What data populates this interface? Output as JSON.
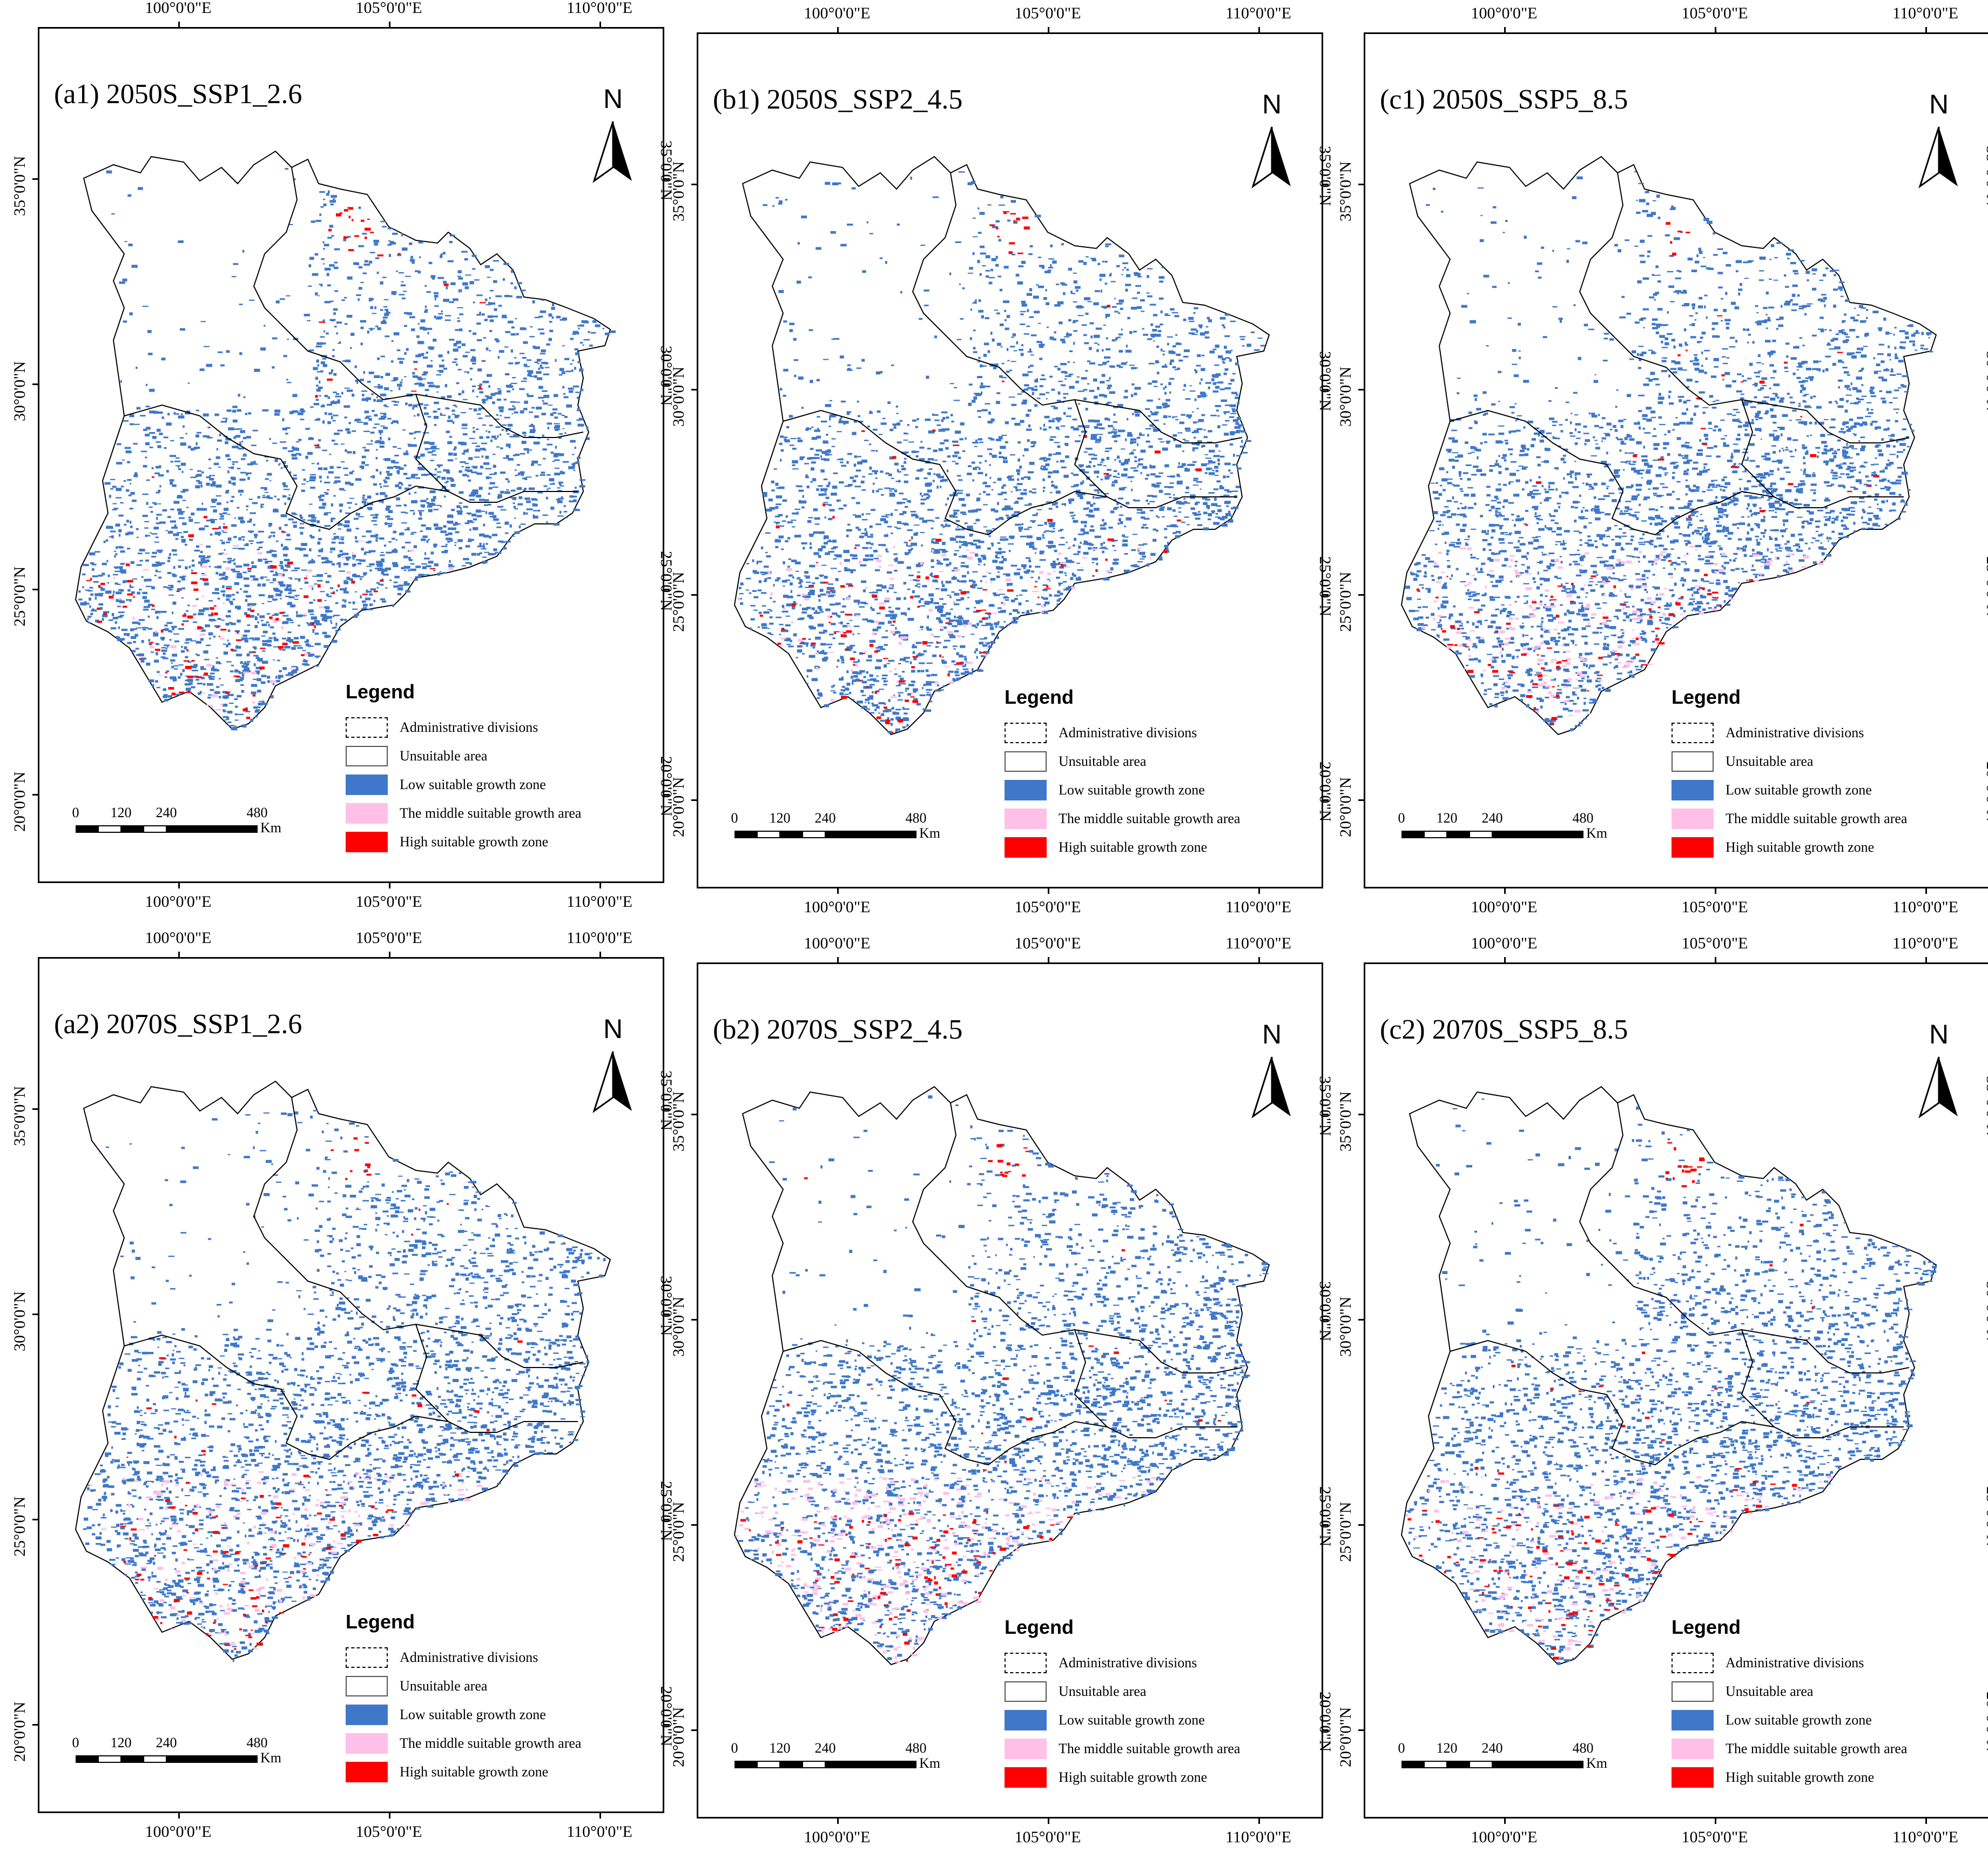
{
  "panels": [
    {
      "id": "a1",
      "title": "(a1) 2050S_SSP1_2.6",
      "variant": 0
    },
    {
      "id": "b1",
      "title": "(b1) 2050S_SSP2_4.5",
      "variant": 1
    },
    {
      "id": "c1",
      "title": "(c1) 2050S_SSP5_8.5",
      "variant": 2
    },
    {
      "id": "a2",
      "title": "(a2) 2070S_SSP1_2.6",
      "variant": 3
    },
    {
      "id": "b2",
      "title": "(b2) 2070S_SSP2_4.5",
      "variant": 4
    },
    {
      "id": "c2",
      "title": "(c2) 2070S_SSP5_8.5",
      "variant": 5
    }
  ],
  "longitude_labels": [
    "100°0'0\"E",
    "105°0'0\"E",
    "110°0'0\"E"
  ],
  "latitude_labels": [
    "35°0'0\"N",
    "30°0'0\"N",
    "25°0'0\"N",
    "20°0'0\"N"
  ],
  "north_label": "N",
  "legend": {
    "title": "Legend",
    "items": [
      {
        "label": "Administrative divisions",
        "color": "#ffffff",
        "style": "dashed"
      },
      {
        "label": "Unsuitable area",
        "color": "#ffffff",
        "style": "solid"
      },
      {
        "label": "Low suitable growth zone",
        "color": "#3f78c8",
        "style": "fill"
      },
      {
        "label": "The middle suitable growth area",
        "color": "#ffc0e8",
        "style": "fill"
      },
      {
        "label": "High suitable growth zone",
        "color": "#ff0000",
        "style": "fill"
      }
    ]
  },
  "scale_bar": {
    "ticks": [
      "0",
      "120",
      "240",
      "480"
    ],
    "unit": "Km"
  }
}
